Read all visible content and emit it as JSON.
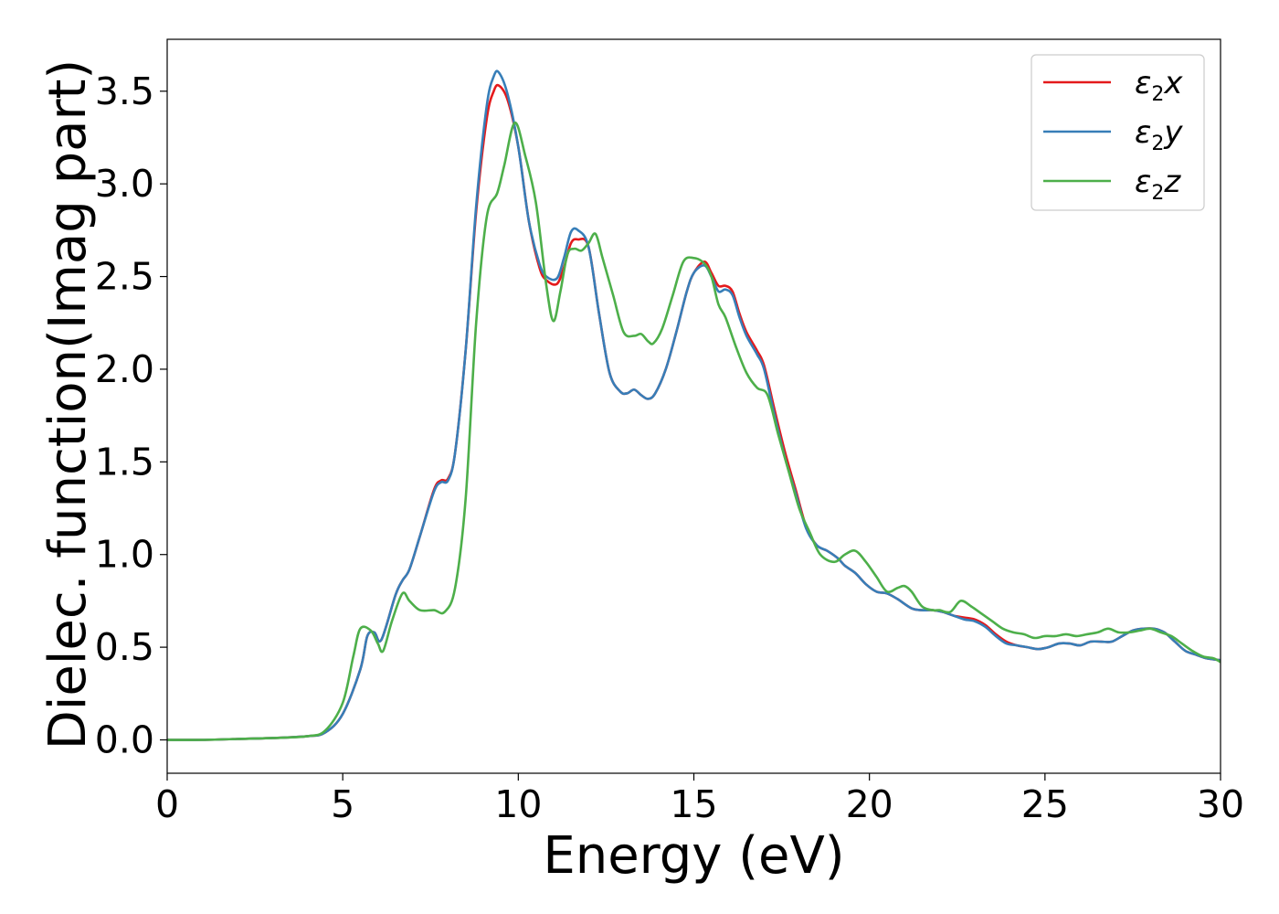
{
  "chart_data": {
    "type": "line",
    "title": "",
    "xlabel": "Energy (eV)",
    "ylabel": "Dielec. function(Imag part)",
    "xlim": [
      0,
      30
    ],
    "ylim": [
      -0.18,
      3.78
    ],
    "xticks": [
      0,
      5,
      10,
      15,
      20,
      25,
      30
    ],
    "xtick_labels": [
      "0",
      "5",
      "10",
      "15",
      "20",
      "25",
      "30"
    ],
    "yticks": [
      0.0,
      0.5,
      1.0,
      1.5,
      2.0,
      2.5,
      3.0,
      3.5
    ],
    "ytick_labels": [
      "0.0",
      "0.5",
      "1.0",
      "1.5",
      "2.0",
      "2.5",
      "3.0",
      "3.5"
    ],
    "grid": false,
    "legend_position": "top-right",
    "series": [
      {
        "name": "ε2x",
        "legend_main": "ε",
        "legend_sub": "2",
        "legend_tail": "x",
        "color": "#e41a1c",
        "x": [
          0,
          1,
          2,
          3,
          4,
          4.5,
          5,
          5.5,
          5.7,
          5.9,
          6.1,
          6.5,
          6.7,
          6.9,
          7.2,
          7.6,
          7.8,
          8.0,
          8.2,
          8.5,
          8.8,
          9.1,
          9.3,
          9.45,
          9.7,
          10.0,
          10.3,
          10.6,
          10.8,
          11.1,
          11.3,
          11.5,
          11.7,
          12.0,
          12.3,
          12.6,
          12.9,
          13.1,
          13.3,
          13.5,
          13.7,
          13.9,
          14.2,
          14.5,
          14.8,
          15.0,
          15.3,
          15.5,
          15.7,
          15.9,
          16.1,
          16.3,
          16.5,
          16.8,
          17.0,
          17.3,
          17.6,
          17.9,
          18.2,
          18.5,
          18.8,
          19.1,
          19.3,
          19.6,
          19.9,
          20.2,
          20.5,
          20.8,
          21.2,
          21.5,
          21.8,
          22.1,
          22.4,
          22.7,
          23.0,
          23.3,
          23.6,
          23.9,
          24.2,
          24.5,
          24.8,
          25.1,
          25.4,
          25.7,
          26.0,
          26.3,
          26.6,
          26.9,
          27.2,
          27.5,
          27.8,
          28.1,
          28.4,
          28.7,
          29.0,
          29.3,
          29.6,
          30.0
        ],
        "y": [
          0.0,
          0.0,
          0.005,
          0.01,
          0.02,
          0.04,
          0.14,
          0.38,
          0.56,
          0.58,
          0.54,
          0.78,
          0.86,
          0.92,
          1.1,
          1.35,
          1.4,
          1.41,
          1.55,
          2.1,
          2.85,
          3.35,
          3.5,
          3.53,
          3.45,
          3.2,
          2.8,
          2.55,
          2.48,
          2.46,
          2.55,
          2.68,
          2.7,
          2.66,
          2.3,
          1.98,
          1.88,
          1.87,
          1.89,
          1.86,
          1.84,
          1.87,
          2.0,
          2.2,
          2.42,
          2.52,
          2.58,
          2.52,
          2.45,
          2.45,
          2.42,
          2.3,
          2.2,
          2.1,
          2.02,
          1.78,
          1.55,
          1.35,
          1.15,
          1.05,
          1.02,
          0.98,
          0.94,
          0.9,
          0.84,
          0.8,
          0.79,
          0.76,
          0.71,
          0.7,
          0.7,
          0.69,
          0.67,
          0.66,
          0.65,
          0.62,
          0.57,
          0.53,
          0.51,
          0.5,
          0.49,
          0.5,
          0.52,
          0.52,
          0.51,
          0.53,
          0.53,
          0.53,
          0.56,
          0.59,
          0.6,
          0.6,
          0.58,
          0.53,
          0.48,
          0.46,
          0.44,
          0.43
        ]
      },
      {
        "name": "ε2y",
        "legend_main": "ε",
        "legend_sub": "2",
        "legend_tail": "y",
        "color": "#377eb8",
        "x": [
          0,
          1,
          2,
          3,
          4,
          4.5,
          5,
          5.5,
          5.7,
          5.9,
          6.1,
          6.5,
          6.7,
          6.9,
          7.2,
          7.6,
          7.8,
          8.0,
          8.2,
          8.5,
          8.8,
          9.1,
          9.3,
          9.45,
          9.7,
          10.0,
          10.3,
          10.6,
          10.8,
          11.1,
          11.3,
          11.5,
          11.7,
          12.0,
          12.3,
          12.6,
          12.9,
          13.1,
          13.3,
          13.5,
          13.7,
          13.9,
          14.2,
          14.5,
          14.8,
          15.0,
          15.3,
          15.5,
          15.7,
          15.9,
          16.1,
          16.3,
          16.5,
          16.8,
          17.0,
          17.3,
          17.6,
          17.9,
          18.2,
          18.5,
          18.8,
          19.1,
          19.3,
          19.6,
          19.9,
          20.2,
          20.5,
          20.8,
          21.2,
          21.5,
          21.8,
          22.1,
          22.4,
          22.7,
          23.0,
          23.3,
          23.6,
          23.9,
          24.2,
          24.5,
          24.8,
          25.1,
          25.4,
          25.7,
          26.0,
          26.3,
          26.6,
          26.9,
          27.2,
          27.5,
          27.8,
          28.1,
          28.4,
          28.7,
          29.0,
          29.3,
          29.6,
          30.0
        ],
        "y": [
          0.0,
          0.0,
          0.005,
          0.01,
          0.02,
          0.04,
          0.14,
          0.38,
          0.56,
          0.58,
          0.54,
          0.78,
          0.86,
          0.92,
          1.1,
          1.34,
          1.39,
          1.4,
          1.55,
          2.1,
          2.88,
          3.42,
          3.58,
          3.6,
          3.48,
          3.2,
          2.8,
          2.57,
          2.5,
          2.49,
          2.6,
          2.74,
          2.75,
          2.66,
          2.3,
          1.98,
          1.88,
          1.87,
          1.89,
          1.86,
          1.84,
          1.87,
          2.0,
          2.2,
          2.42,
          2.52,
          2.56,
          2.5,
          2.42,
          2.43,
          2.4,
          2.28,
          2.18,
          2.08,
          2.0,
          1.75,
          1.52,
          1.33,
          1.14,
          1.05,
          1.02,
          0.98,
          0.94,
          0.9,
          0.84,
          0.8,
          0.79,
          0.76,
          0.71,
          0.7,
          0.7,
          0.69,
          0.67,
          0.65,
          0.64,
          0.61,
          0.56,
          0.52,
          0.51,
          0.5,
          0.49,
          0.5,
          0.52,
          0.52,
          0.51,
          0.53,
          0.53,
          0.53,
          0.56,
          0.59,
          0.6,
          0.6,
          0.58,
          0.53,
          0.48,
          0.46,
          0.44,
          0.43
        ]
      },
      {
        "name": "ε2z",
        "legend_main": "ε",
        "legend_sub": "2",
        "legend_tail": "z",
        "color": "#4daf4a",
        "x": [
          0,
          1,
          2,
          3,
          4,
          4.5,
          5,
          5.3,
          5.5,
          5.8,
          6.0,
          6.15,
          6.4,
          6.7,
          6.9,
          7.2,
          7.6,
          7.9,
          8.2,
          8.5,
          8.8,
          9.1,
          9.4,
          9.6,
          9.9,
          10.2,
          10.5,
          10.8,
          11.0,
          11.2,
          11.4,
          11.6,
          11.8,
          12.0,
          12.2,
          12.4,
          12.7,
          13.0,
          13.3,
          13.5,
          13.7,
          13.85,
          14.1,
          14.4,
          14.7,
          15.0,
          15.3,
          15.5,
          15.7,
          15.9,
          16.2,
          16.5,
          16.8,
          17.1,
          17.4,
          17.7,
          18.0,
          18.3,
          18.6,
          19.0,
          19.3,
          19.6,
          19.9,
          20.2,
          20.5,
          20.8,
          21.0,
          21.2,
          21.5,
          21.8,
          22.0,
          22.3,
          22.6,
          22.9,
          23.2,
          23.5,
          23.8,
          24.1,
          24.4,
          24.7,
          25.0,
          25.3,
          25.6,
          25.9,
          26.2,
          26.5,
          26.8,
          27.1,
          27.4,
          27.7,
          28.0,
          28.3,
          28.6,
          28.9,
          29.2,
          29.5,
          29.8,
          30.0
        ],
        "y": [
          0.0,
          0.0,
          0.005,
          0.01,
          0.02,
          0.05,
          0.2,
          0.45,
          0.6,
          0.59,
          0.52,
          0.48,
          0.64,
          0.79,
          0.75,
          0.7,
          0.7,
          0.69,
          0.82,
          1.3,
          2.25,
          2.82,
          2.95,
          3.1,
          3.33,
          3.15,
          2.9,
          2.45,
          2.26,
          2.42,
          2.62,
          2.65,
          2.64,
          2.68,
          2.73,
          2.6,
          2.4,
          2.2,
          2.18,
          2.19,
          2.15,
          2.14,
          2.22,
          2.4,
          2.58,
          2.6,
          2.57,
          2.5,
          2.35,
          2.28,
          2.12,
          1.98,
          1.9,
          1.86,
          1.65,
          1.45,
          1.25,
          1.12,
          1.0,
          0.96,
          1.0,
          1.02,
          0.96,
          0.88,
          0.8,
          0.82,
          0.83,
          0.8,
          0.72,
          0.7,
          0.7,
          0.69,
          0.75,
          0.72,
          0.68,
          0.64,
          0.6,
          0.58,
          0.57,
          0.55,
          0.56,
          0.56,
          0.57,
          0.56,
          0.57,
          0.58,
          0.6,
          0.58,
          0.58,
          0.59,
          0.6,
          0.58,
          0.56,
          0.52,
          0.48,
          0.45,
          0.44,
          0.42
        ]
      }
    ]
  }
}
